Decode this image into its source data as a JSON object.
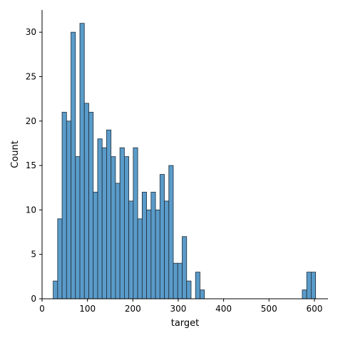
{
  "chart_data": {
    "type": "bar",
    "xlabel": "target",
    "ylabel": "Count",
    "xlim": [
      0,
      630
    ],
    "ylim": [
      0,
      32.5
    ],
    "xticks": [
      0,
      100,
      200,
      300,
      400,
      500,
      600
    ],
    "yticks": [
      0,
      5,
      10,
      15,
      20,
      25,
      30
    ],
    "bin_width": 9.8,
    "bar_color": "#5a9bc9",
    "bins": [
      {
        "start": 24.5,
        "count": 2
      },
      {
        "start": 34.3,
        "count": 9
      },
      {
        "start": 44.1,
        "count": 21
      },
      {
        "start": 53.9,
        "count": 20
      },
      {
        "start": 63.7,
        "count": 30
      },
      {
        "start": 73.5,
        "count": 16
      },
      {
        "start": 83.3,
        "count": 31
      },
      {
        "start": 93.1,
        "count": 22
      },
      {
        "start": 102.9,
        "count": 21
      },
      {
        "start": 112.7,
        "count": 12
      },
      {
        "start": 122.5,
        "count": 18
      },
      {
        "start": 132.3,
        "count": 17
      },
      {
        "start": 142.1,
        "count": 19
      },
      {
        "start": 151.9,
        "count": 16
      },
      {
        "start": 161.7,
        "count": 13
      },
      {
        "start": 171.5,
        "count": 17
      },
      {
        "start": 181.3,
        "count": 16
      },
      {
        "start": 191.1,
        "count": 11
      },
      {
        "start": 200.9,
        "count": 17
      },
      {
        "start": 210.7,
        "count": 9
      },
      {
        "start": 220.5,
        "count": 12
      },
      {
        "start": 230.3,
        "count": 10
      },
      {
        "start": 240.1,
        "count": 12
      },
      {
        "start": 249.9,
        "count": 10
      },
      {
        "start": 259.7,
        "count": 14
      },
      {
        "start": 269.5,
        "count": 11
      },
      {
        "start": 279.3,
        "count": 15
      },
      {
        "start": 289.1,
        "count": 4
      },
      {
        "start": 298.9,
        "count": 4
      },
      {
        "start": 308.7,
        "count": 7
      },
      {
        "start": 318.5,
        "count": 2
      },
      {
        "start": 328.3,
        "count": 0
      },
      {
        "start": 338.1,
        "count": 3
      },
      {
        "start": 347.9,
        "count": 1
      },
      {
        "start": 573.3,
        "count": 1
      },
      {
        "start": 583.1,
        "count": 3
      },
      {
        "start": 592.9,
        "count": 3
      }
    ]
  }
}
